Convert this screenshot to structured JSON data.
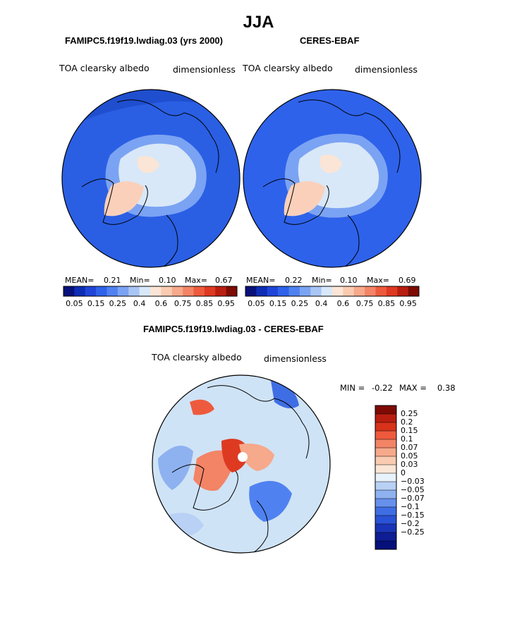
{
  "figure": {
    "title": "JJA"
  },
  "colors": {
    "ocean": "#2a5fe4",
    "ocean_dark": "#1f4fcf",
    "ice_light": "#d9ecfa",
    "land_peach": "#f8cdb8",
    "coast": "#000000",
    "diff_bg": "#cfe3f6"
  },
  "panels": {
    "model": {
      "title": "FAMIPC5.f19f19.lwdiag.03 (yrs 2000)",
      "variable": "TOA clearsky albedo",
      "units": "dimensionless",
      "mean_label": "MEAN=",
      "mean": "0.21",
      "min_label": "Min=",
      "min": "0.10",
      "max_label": "Max=",
      "max": "0.67"
    },
    "obs": {
      "title": "CERES-EBAF",
      "variable": "TOA clearsky albedo",
      "units": "dimensionless",
      "mean_label": "MEAN=",
      "mean": "0.22",
      "min_label": "Min=",
      "min": "0.10",
      "max_label": "Max=",
      "max": "0.69"
    },
    "diff": {
      "title": "FAMIPC5.f19f19.lwdiag.03 - CERES-EBAF",
      "variable": "TOA clearsky albedo",
      "units": "dimensionless",
      "min_label": "MIN =",
      "min": "-0.22",
      "max_label": "MAX =",
      "max": "0.38"
    }
  },
  "chart_data": [
    {
      "type": "heatmap",
      "title": "FAMIPC5.f19f19.lwdiag.03 (yrs 2000)",
      "projection": "north polar stereographic",
      "season": "JJA",
      "variable": "TOA clearsky albedo",
      "units": "dimensionless",
      "mean": 0.21,
      "min": 0.1,
      "max": 0.67,
      "colorbar_ticks": [
        "0.05",
        "0.15",
        "0.25",
        "0.4",
        "0.6",
        "0.75",
        "0.85",
        "0.95"
      ],
      "colorbar_colors": [
        "#08107a",
        "#0d2db5",
        "#1f45d8",
        "#2e62ea",
        "#4f82f0",
        "#7ba3f3",
        "#a9c5f5",
        "#d8e8f8",
        "#fbe5d6",
        "#f9cbb1",
        "#f6a98b",
        "#f38466",
        "#ee5a3d",
        "#de3a22",
        "#b81e10",
        "#7e0a04"
      ]
    },
    {
      "type": "heatmap",
      "title": "CERES-EBAF",
      "projection": "north polar stereographic",
      "season": "JJA",
      "variable": "TOA clearsky albedo",
      "units": "dimensionless",
      "mean": 0.22,
      "min": 0.1,
      "max": 0.69,
      "colorbar_ticks": [
        "0.05",
        "0.15",
        "0.25",
        "0.4",
        "0.6",
        "0.75",
        "0.85",
        "0.95"
      ],
      "colorbar_colors": [
        "#08107a",
        "#0d2db5",
        "#1f45d8",
        "#2e62ea",
        "#4f82f0",
        "#7ba3f3",
        "#a9c5f5",
        "#d8e8f8",
        "#fbe5d6",
        "#f9cbb1",
        "#f6a98b",
        "#f38466",
        "#ee5a3d",
        "#de3a22",
        "#b81e10",
        "#7e0a04"
      ]
    },
    {
      "type": "heatmap",
      "title": "FAMIPC5.f19f19.lwdiag.03 - CERES-EBAF",
      "projection": "north polar stereographic",
      "season": "JJA",
      "variable": "TOA clearsky albedo",
      "units": "dimensionless",
      "min": -0.22,
      "max": 0.38,
      "colorbar_ticks": [
        "0.25",
        "0.2",
        "0.15",
        "0.1",
        "0.07",
        "0.05",
        "0.03",
        "0",
        "-0.03",
        "-0.05",
        "-0.07",
        "-0.1",
        "-0.15",
        "-0.2",
        "-0.25"
      ],
      "colorbar_colors": [
        "#7e0a04",
        "#b81e10",
        "#d8321a",
        "#ee5a3d",
        "#f38466",
        "#f6a98b",
        "#f9cbb1",
        "#fbe5d6",
        "#e8f2fb",
        "#b8d1f5",
        "#8eb1f0",
        "#6690ec",
        "#3f6ee4",
        "#2a52d6",
        "#1a34b8",
        "#0e1d93",
        "#06107a"
      ]
    }
  ]
}
